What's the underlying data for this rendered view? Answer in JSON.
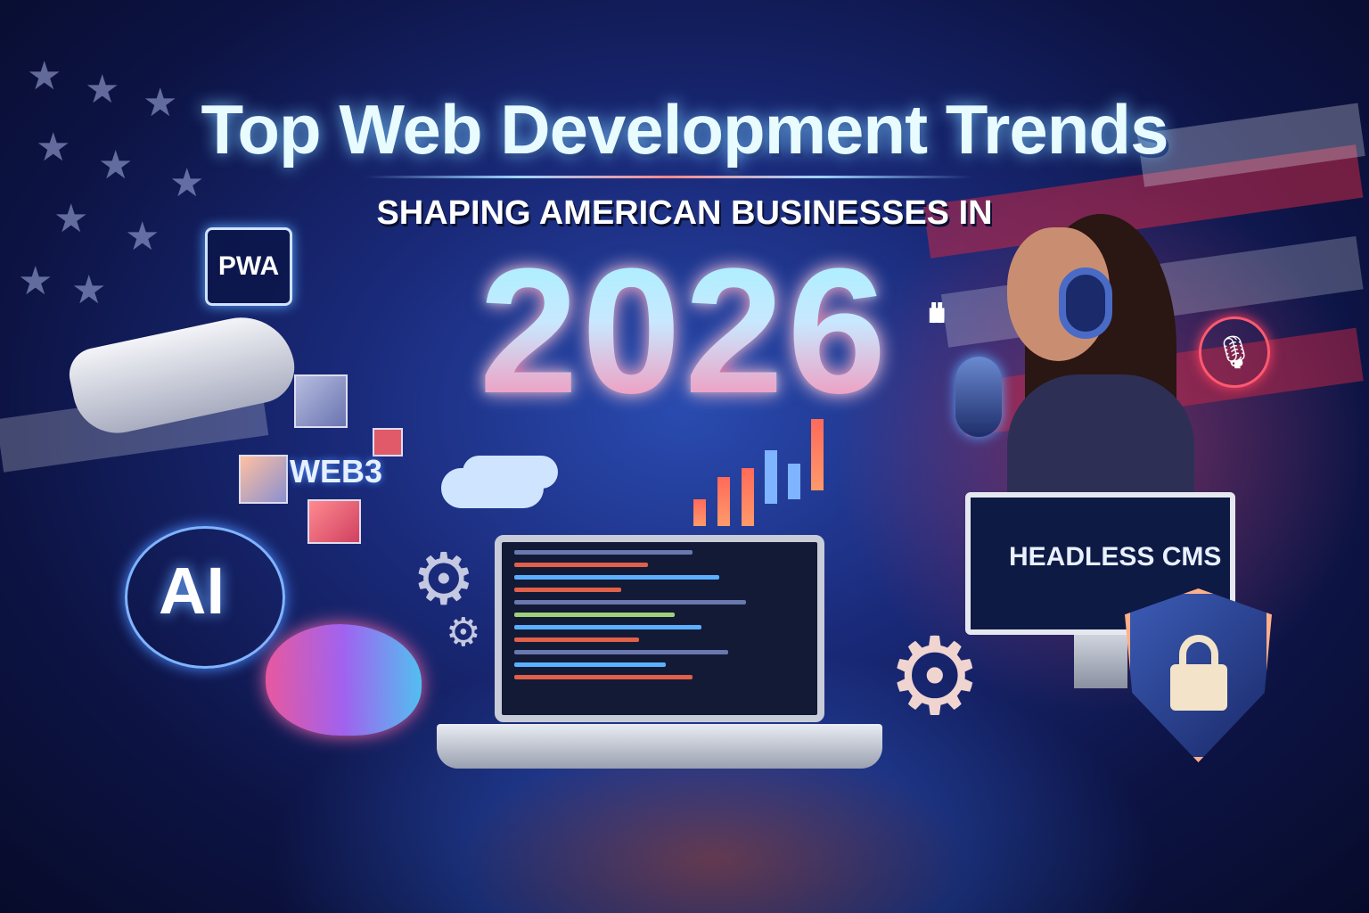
{
  "title": "Top Web Development Trends",
  "subtitle": "SHAPING AMERICAN BUSINESSES IN",
  "year": "2026",
  "labels": {
    "pwa": "PWA",
    "web3": "WEB3",
    "ai": "AI",
    "headless_cms": "HEADLESS CMS"
  },
  "icons": [
    "robot-hand-icon",
    "cube-icon",
    "cloud-icon",
    "bar-chart-icon",
    "gear-icon",
    "brain-icon",
    "laptop-icon",
    "monitor-icon",
    "shield-lock-icon",
    "microphone-icon",
    "sound-wave-icon",
    "headset-icon",
    "us-flag-icon"
  ],
  "colors": {
    "background": "#1a2a7a",
    "accent_red": "#ff4a64",
    "accent_cyan": "#8ff0ff"
  }
}
